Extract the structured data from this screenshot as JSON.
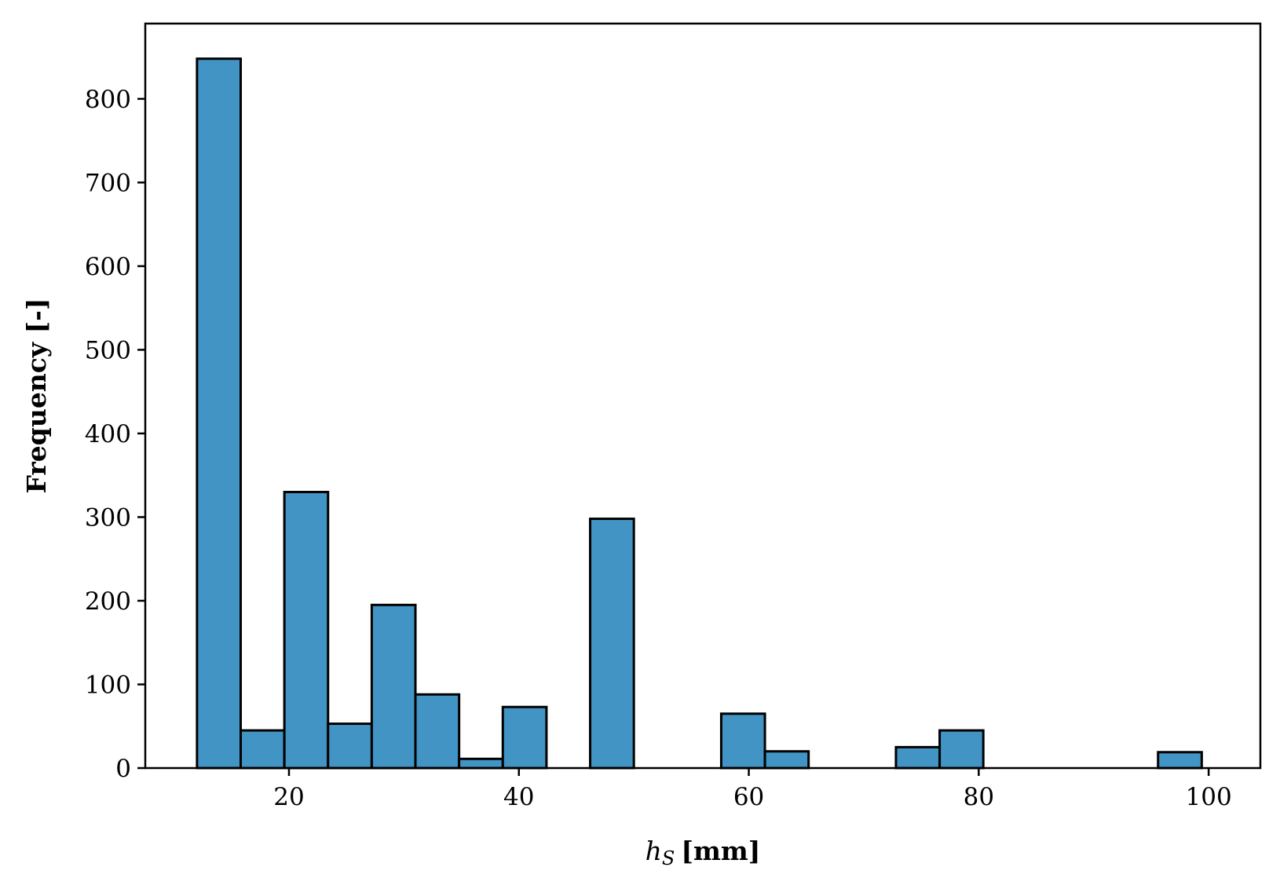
{
  "chart_data": {
    "type": "bar",
    "title": "",
    "xlabel": "[mm]",
    "xlabel_symbol": "h",
    "xlabel_subscript": "S",
    "ylabel": "Frequency [-]",
    "xlim": [
      7.5,
      104.5
    ],
    "ylim": [
      0,
      890
    ],
    "xticks": [
      20,
      40,
      60,
      80,
      100
    ],
    "yticks": [
      0,
      100,
      200,
      300,
      400,
      500,
      600,
      700,
      800
    ],
    "bin_edges": [
      12,
      15.8,
      19.6,
      23.4,
      27.2,
      31,
      34.8,
      38.6,
      42.4,
      46.2,
      50,
      53.8,
      57.6,
      61.4,
      65.2,
      69,
      72.8,
      76.6,
      80.4,
      84.2,
      88,
      91.8,
      95.6,
      99.4
    ],
    "values": [
      848,
      45,
      330,
      53,
      195,
      88,
      11,
      73,
      0,
      298,
      0,
      0,
      65,
      20,
      0,
      0,
      25,
      45,
      0,
      0,
      0,
      0,
      19
    ],
    "bar_color": "#4194c4",
    "edge_color": "#000000",
    "grid": false,
    "legend": "none"
  }
}
